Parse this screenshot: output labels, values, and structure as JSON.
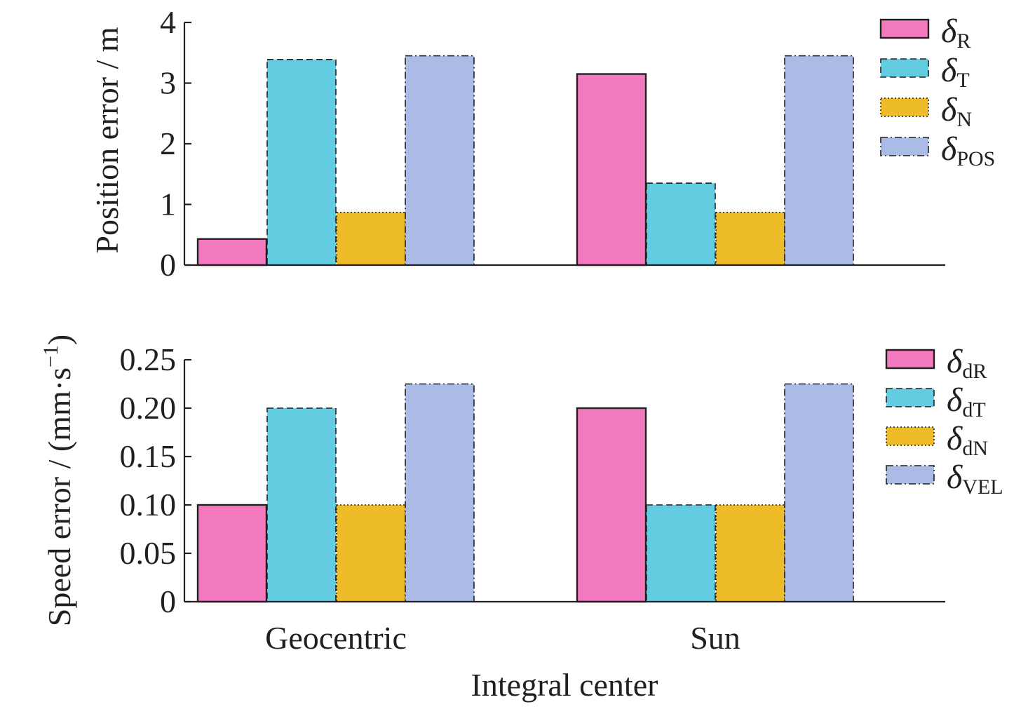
{
  "chart_data": [
    {
      "type": "bar",
      "title": "",
      "categories": [
        "Geocentric",
        "Sun"
      ],
      "ylabel": "Position error / m",
      "xlabel": "",
      "ylim": [
        0,
        4
      ],
      "yticks": [
        "0",
        "1",
        "2",
        "3",
        "4"
      ],
      "show_category_labels": false,
      "legend_position": "top-right",
      "series": [
        {
          "name": "δR",
          "symbol": "δ",
          "subscript": "R",
          "color": "#f47abf",
          "border": "solid",
          "values": [
            0.43,
            3.15
          ]
        },
        {
          "name": "δT",
          "symbol": "δ",
          "subscript": "T",
          "color": "#63cce1",
          "border": "dashed",
          "values": [
            3.39,
            1.35
          ]
        },
        {
          "name": "δN",
          "symbol": "δ",
          "subscript": "N",
          "color": "#efbc29",
          "border": "dotted",
          "values": [
            0.87,
            0.87
          ]
        },
        {
          "name": "δPOS",
          "symbol": "δ",
          "subscript": "POS",
          "color": "#aabbe5",
          "border": "dashdot",
          "values": [
            3.45,
            3.45
          ]
        }
      ]
    },
    {
      "type": "bar",
      "title": "",
      "categories": [
        "Geocentric",
        "Sun"
      ],
      "ylabel": "Speed error / (mm·s",
      "ylabel_superscript": "−1",
      "ylabel_suffix": ")",
      "xlabel": "Integral center",
      "ylim": [
        0,
        0.25
      ],
      "yticks": [
        "0",
        "0.05",
        "0.10",
        "0.15",
        "0.20",
        "0.25"
      ],
      "show_category_labels": true,
      "legend_position": "top-right",
      "series": [
        {
          "name": "δdR",
          "symbol": "δ",
          "subscript": "dR",
          "color": "#f47abf",
          "border": "solid",
          "values": [
            0.1,
            0.2
          ]
        },
        {
          "name": "δdT",
          "symbol": "δ",
          "subscript": "dT",
          "color": "#63cce1",
          "border": "dashed",
          "values": [
            0.2,
            0.1
          ]
        },
        {
          "name": "δdN",
          "symbol": "δ",
          "subscript": "dN",
          "color": "#efbc29",
          "border": "dotted",
          "values": [
            0.1,
            0.1
          ]
        },
        {
          "name": "δVEL",
          "symbol": "δ",
          "subscript": "VEL",
          "color": "#aabbe5",
          "border": "dashdot",
          "values": [
            0.225,
            0.225
          ]
        }
      ]
    }
  ]
}
